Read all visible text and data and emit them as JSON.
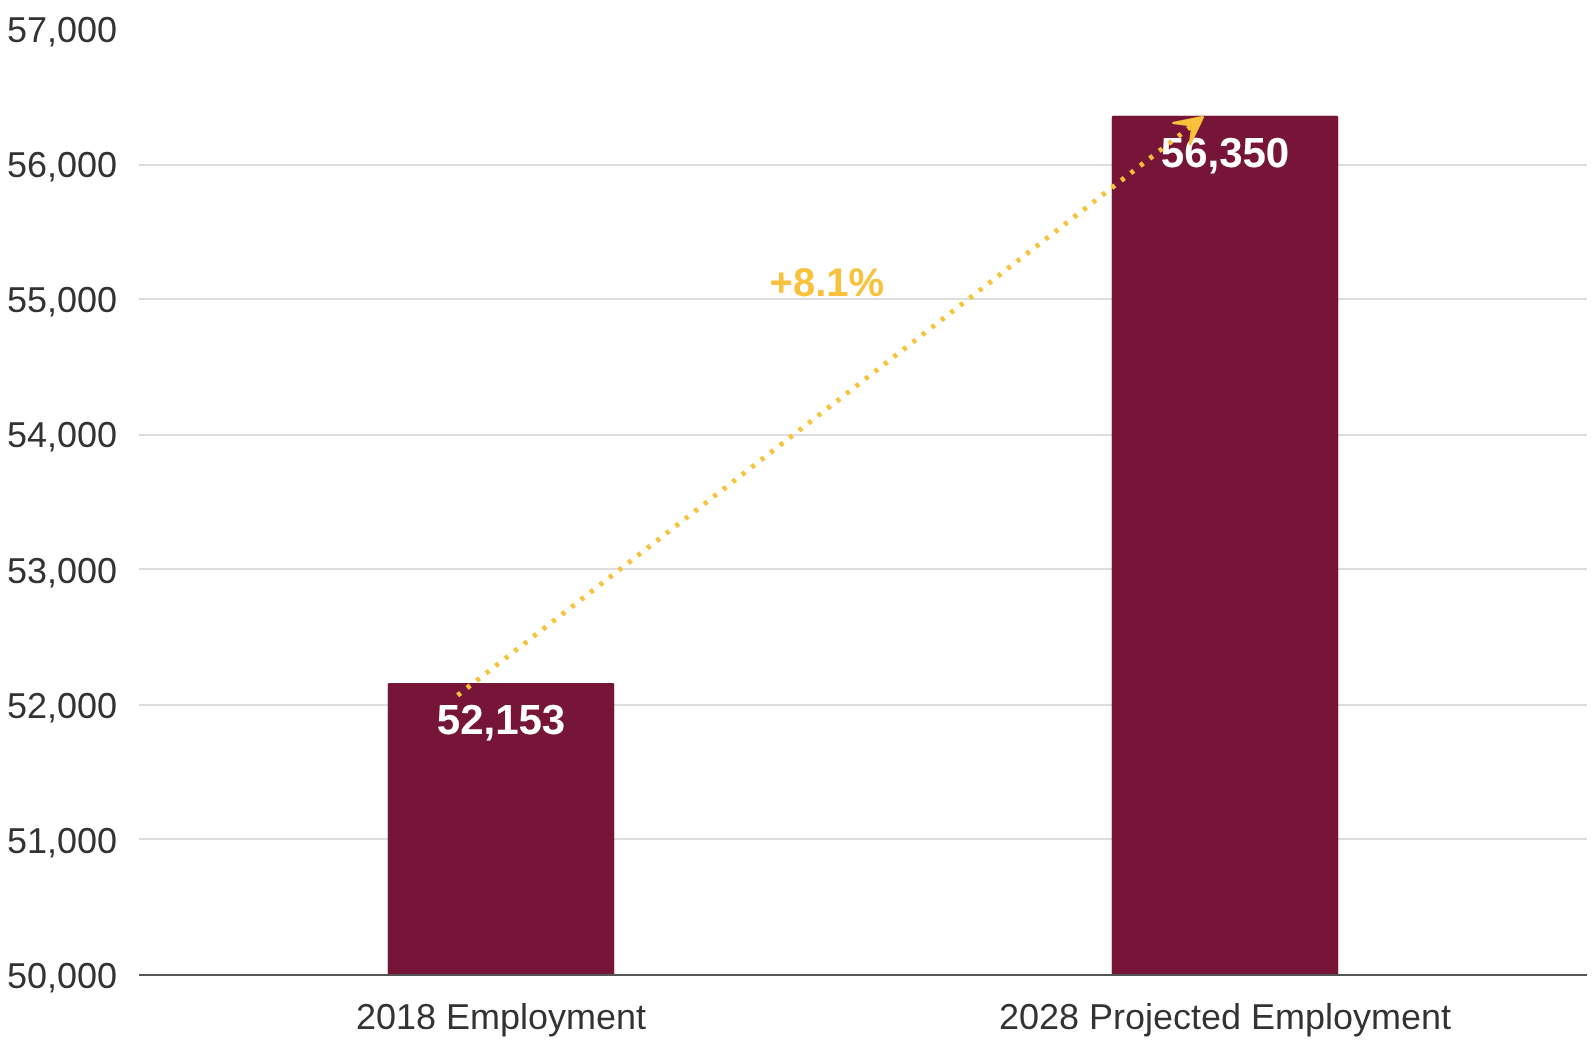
{
  "chart_data": {
    "type": "bar",
    "categories": [
      "2018 Employment",
      "2028 Projected Employment"
    ],
    "values": [
      52153,
      56350
    ],
    "color": "#771539",
    "ylim": [
      50000,
      57000
    ],
    "yticks": [
      {
        "value": 50000,
        "label": "50,000"
      },
      {
        "value": 51000,
        "label": "51,000"
      },
      {
        "value": 52000,
        "label": "52,000"
      },
      {
        "value": 53000,
        "label": "53,000"
      },
      {
        "value": 54000,
        "label": "54,000"
      },
      {
        "value": 55000,
        "label": "55,000"
      },
      {
        "value": 56000,
        "label": "56,000"
      },
      {
        "value": 57000,
        "label": "57,000"
      }
    ],
    "grid": "y",
    "value_labels": [
      "52,153",
      "56,350"
    ],
    "annotations": [
      "+8.1%"
    ]
  }
}
